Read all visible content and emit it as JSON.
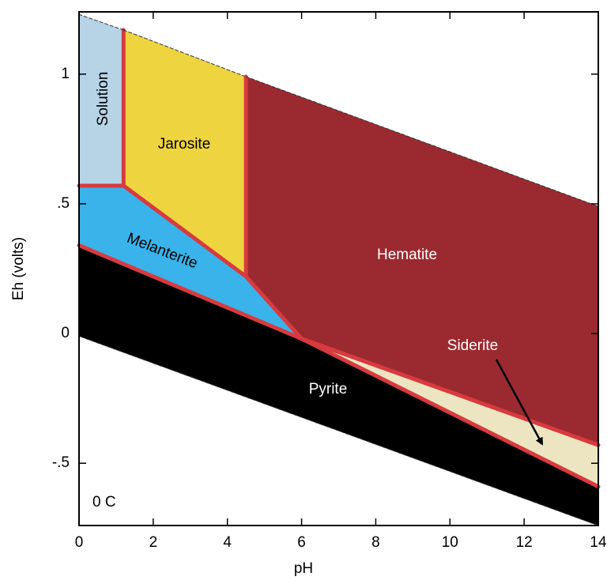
{
  "chart_data": {
    "type": "phase-diagram",
    "x_label": "pH",
    "y_label": "Eh (volts)",
    "annotation": "0 C",
    "xlim": [
      0,
      14
    ],
    "ylim": [
      -0.74,
      1.24
    ],
    "xticks": [
      0,
      2,
      4,
      6,
      8,
      10,
      12,
      14
    ],
    "yticks": [
      {
        "value": -0.5,
        "label": "-.5"
      },
      0,
      {
        "value": 0.5,
        "label": ".5"
      },
      1
    ],
    "boundary_color": "#d83a3f",
    "regions": [
      {
        "name": "Solution",
        "color": "#b7d3e6",
        "x": [
          0,
          1.2,
          1.2,
          0
        ],
        "y": [
          0.57,
          0.57,
          1.17,
          1.23
        ]
      },
      {
        "name": "Jarosite",
        "color": "#eed43f",
        "x": [
          1.2,
          1.2,
          4.5,
          4.5
        ],
        "y": [
          0.57,
          1.17,
          0.99,
          0.22
        ]
      },
      {
        "name": "Hematite",
        "color": "#9b2a30",
        "x": [
          4.5,
          14,
          14,
          6,
          4.5
        ],
        "y": [
          0.99,
          0.49,
          -0.43,
          -0.02,
          0.22
        ]
      },
      {
        "name": "Melanterite",
        "color": "#3ab3ea",
        "x": [
          0,
          1.2,
          4.5,
          6,
          0
        ],
        "y": [
          0.57,
          0.57,
          0.22,
          -0.02,
          0.34
        ]
      },
      {
        "name": "Pyrite",
        "color": "#000000",
        "x": [
          0,
          6,
          14,
          14,
          0
        ],
        "y": [
          0.34,
          -0.02,
          -0.59,
          -0.74,
          -0.01
        ]
      },
      {
        "name": "Siderite",
        "color": "#ede5c2",
        "x": [
          6,
          14,
          14
        ],
        "y": [
          -0.02,
          -0.43,
          -0.59
        ]
      }
    ]
  }
}
